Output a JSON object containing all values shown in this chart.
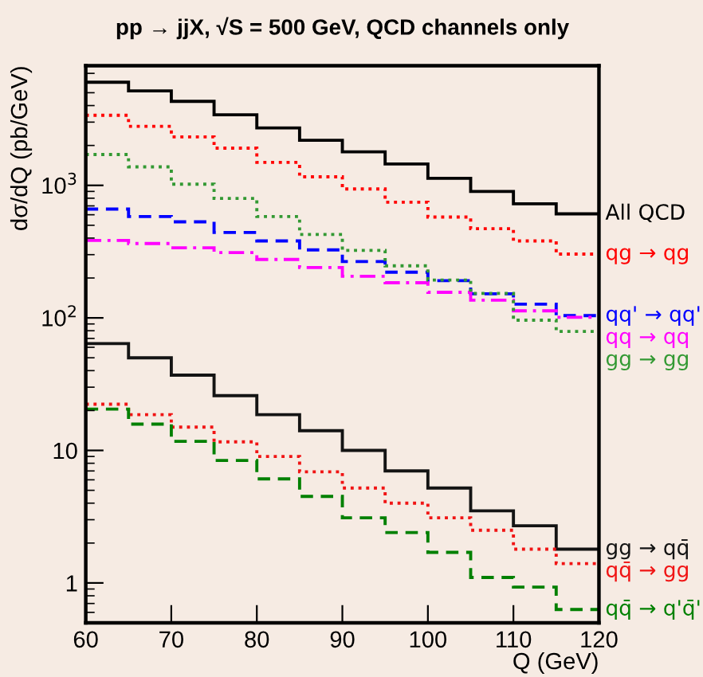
{
  "chart_data": {
    "type": "histogram",
    "title": "pp → jjX, √S = 500 GeV, QCD channels only",
    "xlabel": "Q (GeV)",
    "ylabel": "dσ/dQ (pb/GeV)",
    "bins": [
      60,
      65,
      70,
      75,
      80,
      85,
      90,
      95,
      100,
      105,
      110,
      115,
      120
    ],
    "series": [
      {
        "name": "All QCD",
        "color": "#000000",
        "line_style": "solid",
        "values": [
          6000,
          5160,
          4300,
          3410,
          2710,
          2190,
          1790,
          1450,
          1130,
          900,
          726,
          610
        ]
      },
      {
        "name": "qg → qg",
        "color": "#ff0000",
        "line_style": "dotted",
        "values": [
          3380,
          2790,
          2320,
          1910,
          1490,
          1160,
          940,
          746,
          577,
          471,
          381,
          303
        ]
      },
      {
        "name": "qq' → qq'",
        "color": "#0000ff",
        "line_style": "dashed",
        "values": [
          662,
          582,
          531,
          441,
          381,
          326,
          266,
          221,
          191,
          152,
          127,
          104
        ]
      },
      {
        "name": "qq → qq",
        "color": "#ff00ff",
        "line_style": "dashdot",
        "values": [
          384,
          364,
          338,
          311,
          276,
          240,
          206,
          184,
          156,
          136,
          113,
          101
        ]
      },
      {
        "name": "gg → gg",
        "color": "#339933",
        "line_style": "dotted",
        "values": [
          1710,
          1380,
          1020,
          797,
          582,
          426,
          323,
          247,
          193,
          153,
          96,
          79
        ]
      },
      {
        "name": "gg → qq̄",
        "color": "#141414",
        "line_style": "solid",
        "values": [
          64,
          50,
          37,
          25.9,
          18.6,
          14.1,
          10,
          7.0,
          5.2,
          3.5,
          2.7,
          1.8
        ]
      },
      {
        "name": "qq̄ → gg",
        "color": "#f01414",
        "line_style": "dotted",
        "values": [
          22.3,
          18.6,
          15,
          11.6,
          9.0,
          6.9,
          5.2,
          4.0,
          3.1,
          2.5,
          1.8,
          1.4
        ]
      },
      {
        "name": "qq̄ → q'q̄'",
        "color": "#008000",
        "line_style": "dashed",
        "values": [
          20.5,
          15.8,
          11.7,
          8.4,
          6.1,
          4.5,
          3.1,
          2.4,
          1.7,
          1.1,
          0.93,
          0.63
        ]
      }
    ],
    "log": "y",
    "xlim": [
      60,
      120
    ],
    "ylim": [
      0.5,
      8000
    ],
    "xticks": [
      60,
      70,
      80,
      90,
      100,
      110,
      120
    ],
    "yticks": [
      1,
      10,
      {
        "value": 100,
        "label": "10$^{2}$"
      },
      {
        "value": 1000,
        "label": "10$^{3}$"
      }
    ],
    "grid": false
  }
}
